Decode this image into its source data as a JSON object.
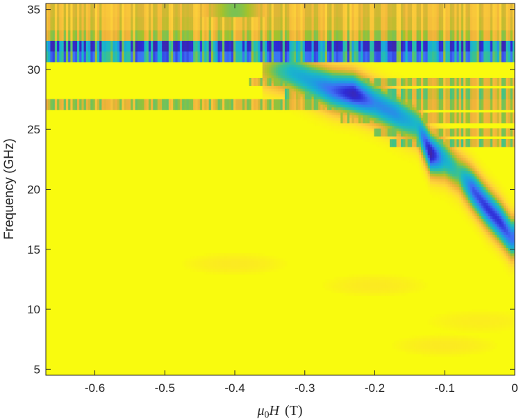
{
  "chart_data": {
    "type": "heatmap",
    "title": "",
    "xlabel": {
      "symbol": "μ",
      "subscript": "0",
      "variable": "H",
      "unit": "(T)"
    },
    "ylabel": "Frequency (GHz)",
    "xlim": [
      -0.67,
      0
    ],
    "ylim": [
      4.5,
      35.5
    ],
    "xticks": [
      -0.6,
      -0.5,
      -0.4,
      -0.3,
      -0.2,
      -0.1,
      0
    ],
    "xtick_labels": [
      "-0.6",
      "-0.5",
      "-0.4",
      "-0.3",
      "-0.2",
      "-0.1",
      "0"
    ],
    "yticks": [
      5,
      10,
      15,
      20,
      25,
      30,
      35
    ],
    "ytick_labels": [
      "5",
      "10",
      "15",
      "20",
      "25",
      "30",
      "35"
    ],
    "colormap": "parula",
    "background_level": 1.0,
    "colormap_stops": [
      "#3e26a8",
      "#2e2bd6",
      "#3f6ff5",
      "#1d9ee0",
      "#1ab8c8",
      "#3ec28a",
      "#a6c22a",
      "#f0b23b",
      "#fed43a",
      "#f9fb0e"
    ],
    "horizontal_bands": [
      {
        "y_range": [
          34.4,
          35.5
        ],
        "x_range": [
          -0.67,
          0
        ],
        "min_level": 0.72,
        "peak_x": -0.4,
        "peak_level": 0.62
      },
      {
        "y_range": [
          33.3,
          34.4
        ],
        "x_range": [
          -0.67,
          0
        ],
        "min_level": 0.7
      },
      {
        "y_range": [
          32.4,
          33.3
        ],
        "x_range": [
          -0.67,
          0
        ],
        "min_level": 0.62
      },
      {
        "y_range": [
          31.6,
          32.4
        ],
        "x_range": [
          -0.67,
          0
        ],
        "min_level": 0.0
      },
      {
        "y_range": [
          30.6,
          31.6
        ],
        "x_range": [
          -0.67,
          0
        ],
        "min_level": 0.15
      },
      {
        "y_range": [
          28.6,
          29.2
        ],
        "x_range": [
          -0.38,
          0
        ],
        "min_level": 0.6
      },
      {
        "y_range": [
          27.6,
          28.4
        ],
        "x_range": [
          -0.33,
          0
        ],
        "min_level": 0.55
      },
      {
        "y_range": [
          26.7,
          27.6
        ],
        "x_range": [
          -0.67,
          0
        ],
        "min_level": 0.6
      },
      {
        "y_range": [
          25.6,
          26.4
        ],
        "x_range": [
          -0.25,
          0
        ],
        "min_level": 0.62
      },
      {
        "y_range": [
          24.4,
          25.2
        ],
        "x_range": [
          -0.2,
          0
        ],
        "min_level": 0.6
      },
      {
        "y_range": [
          23.6,
          24.2
        ],
        "x_range": [
          -0.18,
          0
        ],
        "min_level": 0.55
      }
    ],
    "mode_branch": [
      {
        "x": -0.36,
        "y": 30.0,
        "level": 0.72
      },
      {
        "x": -0.32,
        "y": 29.8,
        "level": 0.42
      },
      {
        "x": -0.29,
        "y": 29.0,
        "level": 0.35
      },
      {
        "x": -0.26,
        "y": 28.3,
        "level": 0.2
      },
      {
        "x": -0.23,
        "y": 28.0,
        "level": 0.04
      },
      {
        "x": -0.2,
        "y": 27.2,
        "level": 0.28
      },
      {
        "x": -0.17,
        "y": 26.3,
        "level": 0.3
      },
      {
        "x": -0.14,
        "y": 25.4,
        "level": 0.45
      },
      {
        "x": -0.12,
        "y": 23.0,
        "level": 0.0
      },
      {
        "x": -0.1,
        "y": 22.5,
        "level": 0.4
      },
      {
        "x": -0.08,
        "y": 21.4,
        "level": 0.55
      },
      {
        "x": -0.06,
        "y": 20.0,
        "level": 0.18
      },
      {
        "x": -0.04,
        "y": 18.5,
        "level": 0.12
      },
      {
        "x": -0.02,
        "y": 17.2,
        "level": 0.12
      },
      {
        "x": -0.005,
        "y": 16.0,
        "level": 0.22
      }
    ],
    "weak_features": [
      {
        "x": -0.4,
        "y": 13.8,
        "level": 0.95
      },
      {
        "x": -0.2,
        "y": 12.0,
        "level": 0.95
      },
      {
        "x": -0.05,
        "y": 9.0,
        "level": 0.96
      },
      {
        "x": -0.1,
        "y": 7.0,
        "level": 0.95
      }
    ]
  }
}
